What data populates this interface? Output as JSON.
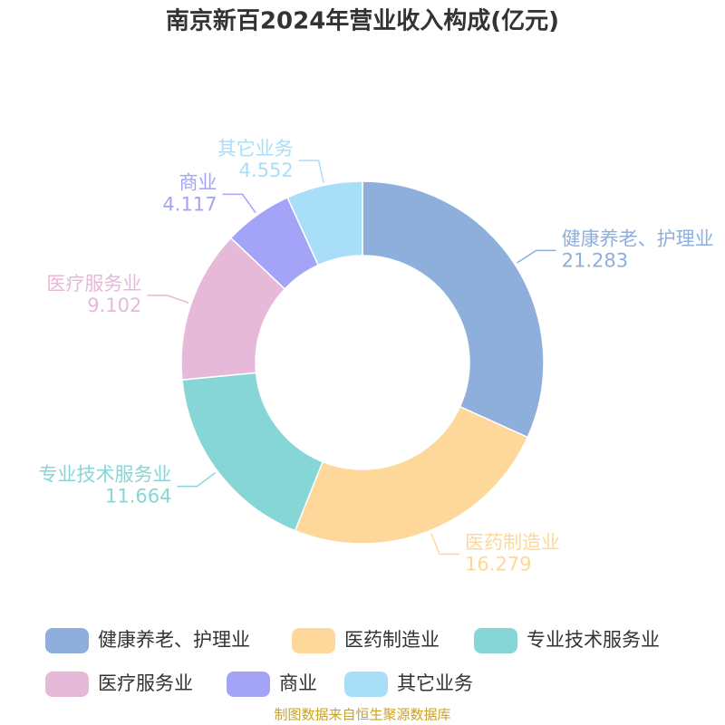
{
  "chart_data": {
    "type": "donut",
    "title": "南京新百2024年营业收入构成(亿元)",
    "categories": [
      "健康养老、护理业",
      "医药制造业",
      "专业技术服务业",
      "医疗服务业",
      "商业",
      "其它业务"
    ],
    "values": [
      21.283,
      16.279,
      11.664,
      9.102,
      4.117,
      4.552
    ],
    "colors": [
      "#8eaedb",
      "#fdd89a",
      "#87d6d7",
      "#e6b9d9",
      "#a3a3f7",
      "#a9def9"
    ],
    "source": "制图数据来自恒生聚源数据库"
  }
}
